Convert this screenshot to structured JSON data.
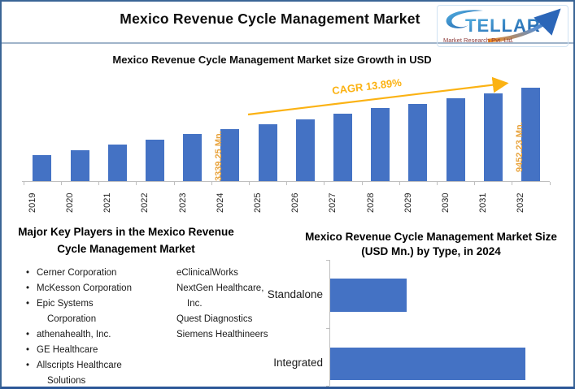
{
  "header": {
    "title": "Mexico Revenue Cycle Management Market",
    "logo": {
      "brand": "STELLAR",
      "brand_rest": "TELLAR",
      "tagline": "Market Research Pvt. Ltd."
    }
  },
  "colors": {
    "bar_blue": "#4472C4",
    "cagr_gold": "#FBB213",
    "annotation_orange": "#E8A33D",
    "axis_gray": "#BFBFBF",
    "outer_border_blue": "#3A6596",
    "logo_blue": "#2173B9",
    "logo_maroon": "#8C3B3B",
    "logo_arrow_orange": "#E87722"
  },
  "chart_data": [
    {
      "type": "bar",
      "title": "Mexico Revenue Cycle Management Market size Growth in USD",
      "cagr_label": "CAGR 13.89%",
      "categories": [
        "2019",
        "2020",
        "2021",
        "2022",
        "2023",
        "2024",
        "2025",
        "2026",
        "2027",
        "2028",
        "2029",
        "2030",
        "2031",
        "2032"
      ],
      "values": [
        1742.7,
        1984.9,
        2260.6,
        2574.4,
        2932.0,
        3339.25,
        3803.0,
        4331.3,
        4932.5,
        5618.2,
        6398.5,
        7287.4,
        8299.7,
        9452.23
      ],
      "values_note": "Only 2024 (3339.25 Mn.) and 2032 (9452.23 Mn.) are labeled in the image; other values estimated from CAGR 13.89%",
      "units": "USD Mn.",
      "ylim": [
        0,
        10000
      ],
      "grid": false,
      "legend": false,
      "annotations": [
        {
          "year": "2024",
          "label": "3339.25 Mn.",
          "inside": false
        },
        {
          "year": "2032",
          "label": "9452.23 Mn.",
          "inside": true
        }
      ],
      "display_heights_rel": [
        0.278,
        0.33,
        0.391,
        0.443,
        0.504,
        0.557,
        0.609,
        0.661,
        0.722,
        0.783,
        0.826,
        0.887,
        0.939,
        1.0
      ]
    },
    {
      "type": "bar",
      "orientation": "horizontal",
      "title": "Mexico Revenue Cycle Management Market Size (USD Mn.) by Type, in 2024",
      "categories": [
        "Standalone",
        "Integrated"
      ],
      "values_rel": [
        0.392,
        1.0
      ],
      "values_note": "No numeric axis or data labels shown; bar lengths relative (Standalone ~39% of Integrated)",
      "grid": false,
      "legend": false
    }
  ],
  "key_players": {
    "heading": "Major Key Players in the Mexico Revenue Cycle Management Market",
    "column1": [
      "Cerner Corporation",
      "McKesson Corporation",
      "Epic Systems Corporation",
      "athenahealth, Inc.",
      "GE Healthcare",
      "Allscripts Healthcare Solutions"
    ],
    "column2": [
      "eClinicalWorks",
      "NextGen Healthcare, Inc.",
      "Quest Diagnostics",
      "Siemens Healthineers"
    ]
  }
}
